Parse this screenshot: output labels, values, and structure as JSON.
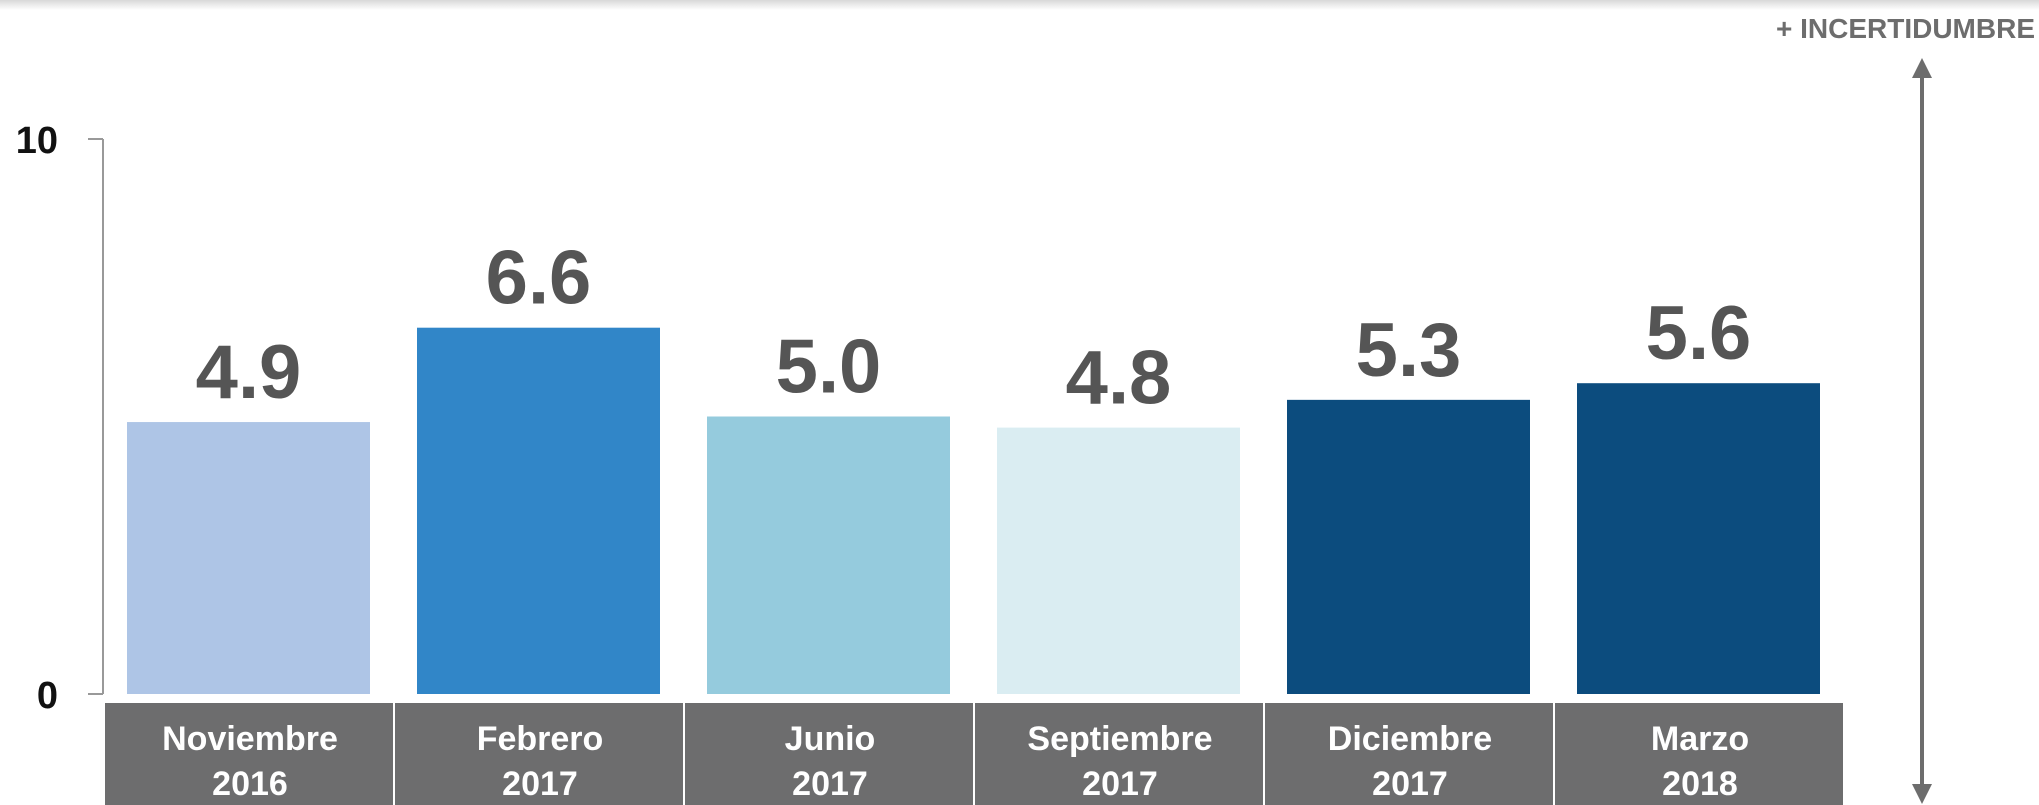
{
  "chart_data": {
    "type": "bar",
    "categories": [
      [
        "Noviembre",
        "2016"
      ],
      [
        "Febrero",
        "2017"
      ],
      [
        "Junio",
        "2017"
      ],
      [
        "Septiembre",
        "2017"
      ],
      [
        "Diciembre",
        "2017"
      ],
      [
        "Marzo",
        "2018"
      ]
    ],
    "values": [
      4.9,
      6.6,
      5,
      4.8,
      5.3,
      5.6
    ],
    "value_labels": [
      "4.9",
      "6.6",
      "5.0",
      "4.8",
      "5.3",
      "5.6"
    ],
    "colors": [
      "#aec5e6",
      "#3186c8",
      "#95cbdd",
      "#daedf2",
      "#0c4c7e",
      "#0c4c7e"
    ],
    "ylim": [
      0,
      10
    ],
    "yticks": [
      0,
      10
    ],
    "annotation": "+ INCERTIDUMBRE"
  }
}
